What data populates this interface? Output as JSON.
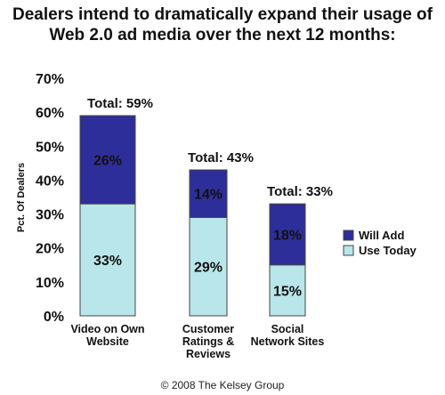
{
  "title_line1": "Dealers intend to dramatically expand their usage of",
  "title_line2": "Web 2.0 ad media over the next 12 months:",
  "copyright": "© 2008 The Kelsey Group",
  "colors": {
    "will_add": "#2e2e9a",
    "use_today": "#b9e6ea",
    "border": "#444444"
  },
  "chart_data": {
    "type": "bar",
    "stacked": true,
    "ylabel": "Pct. Of Dealers",
    "xlabel": "",
    "ylim": [
      0,
      70
    ],
    "yticks": [
      "0%",
      "10%",
      "20%",
      "30%",
      "40%",
      "50%",
      "60%",
      "70%"
    ],
    "categories": [
      [
        "Video on Own",
        "Website"
      ],
      [
        "Customer",
        "Ratings &",
        "Reviews"
      ],
      [
        "Social",
        "Network Sites"
      ]
    ],
    "series": [
      {
        "name": "Use Today",
        "values": [
          33,
          29,
          15
        ],
        "labels": [
          "33%",
          "29%",
          "15%"
        ]
      },
      {
        "name": "Will Add",
        "values": [
          26,
          14,
          18
        ],
        "labels": [
          "26%",
          "14%",
          "18%"
        ]
      }
    ],
    "totals": [
      "Total: 59%",
      "Total: 43%",
      "Total: 33%"
    ],
    "legend": [
      "Will Add",
      "Use Today"
    ],
    "legend_position": "right"
  }
}
